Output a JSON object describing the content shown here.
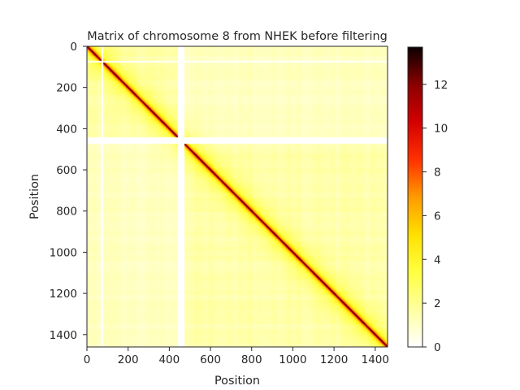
{
  "chart_data": {
    "type": "heatmap",
    "title": "Matrix of chromosome 8 from NHEK before filtering",
    "xlabel": "Position",
    "ylabel": "Position",
    "matrix_size": 1460,
    "xlim": [
      0,
      1460
    ],
    "ylim": [
      1460,
      0
    ],
    "x_ticks": [
      0,
      200,
      400,
      600,
      800,
      1000,
      1200,
      1400
    ],
    "y_ticks": [
      0,
      200,
      400,
      600,
      800,
      1000,
      1200,
      1400
    ],
    "colormap": "hot_r",
    "colorbar": {
      "min": 0,
      "max": 13.7,
      "ticks": [
        0,
        2,
        4,
        6,
        8,
        10,
        12
      ]
    },
    "blank_bands": [
      {
        "start": 440,
        "end": 472
      },
      {
        "start": 72,
        "end": 80
      }
    ],
    "approx_values": {
      "diagonal": 9,
      "near_diagonal_decay_bins": 60,
      "background_min": 0.3,
      "background_max": 2.5
    }
  }
}
